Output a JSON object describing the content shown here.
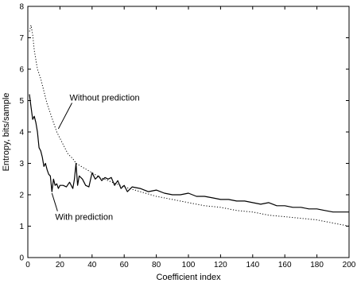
{
  "chart_data": {
    "type": "line",
    "title": "",
    "xlabel": "Coefficient index",
    "ylabel": "Entropy, bits/sample",
    "xlim": [
      0,
      200
    ],
    "ylim": [
      0,
      8
    ],
    "xticks": [
      0,
      20,
      40,
      60,
      80,
      100,
      120,
      140,
      160,
      180,
      200
    ],
    "yticks": [
      0,
      1,
      2,
      3,
      4,
      5,
      6,
      7,
      8
    ],
    "grid": false,
    "legend": "none",
    "series": [
      {
        "name": "Without prediction",
        "style": "dotted",
        "color": "#000000",
        "x": [
          1,
          2,
          3,
          4,
          5,
          6,
          8,
          10,
          12,
          14,
          16,
          18,
          20,
          22,
          25,
          28,
          30,
          35,
          40,
          45,
          50,
          55,
          60,
          70,
          80,
          90,
          100,
          110,
          120,
          130,
          140,
          150,
          160,
          170,
          180,
          190,
          195,
          200
        ],
        "y": [
          7.2,
          7.4,
          7.1,
          6.6,
          6.3,
          6.0,
          5.7,
          5.3,
          4.9,
          4.6,
          4.3,
          4.0,
          3.8,
          3.6,
          3.3,
          3.15,
          3.0,
          2.85,
          2.7,
          2.55,
          2.45,
          2.35,
          2.25,
          2.1,
          1.95,
          1.85,
          1.75,
          1.65,
          1.6,
          1.5,
          1.45,
          1.35,
          1.3,
          1.25,
          1.2,
          1.1,
          1.05,
          1.0
        ]
      },
      {
        "name": "With prediction",
        "style": "solid",
        "color": "#000000",
        "x": [
          1,
          2,
          3,
          4,
          5,
          6,
          7,
          8,
          9,
          10,
          11,
          12,
          13,
          14,
          15,
          16,
          17,
          18,
          19,
          20,
          22,
          24,
          26,
          28,
          29,
          30,
          31,
          32,
          34,
          36,
          38,
          40,
          42,
          44,
          46,
          48,
          50,
          52,
          54,
          56,
          58,
          60,
          62,
          65,
          70,
          75,
          80,
          85,
          90,
          95,
          100,
          105,
          110,
          115,
          120,
          125,
          130,
          135,
          140,
          145,
          150,
          155,
          160,
          165,
          170,
          175,
          180,
          185,
          190,
          195,
          200
        ],
        "y": [
          5.2,
          4.8,
          4.4,
          4.5,
          4.3,
          4.0,
          3.5,
          3.4,
          3.2,
          2.9,
          3.0,
          2.8,
          2.65,
          2.6,
          2.1,
          2.5,
          2.3,
          2.35,
          2.2,
          2.3,
          2.3,
          2.25,
          2.4,
          2.2,
          2.5,
          3.0,
          2.3,
          2.6,
          2.5,
          2.3,
          2.25,
          2.7,
          2.5,
          2.6,
          2.45,
          2.55,
          2.5,
          2.55,
          2.3,
          2.45,
          2.2,
          2.3,
          2.1,
          2.25,
          2.2,
          2.1,
          2.15,
          2.05,
          2.0,
          2.0,
          2.05,
          1.95,
          1.95,
          1.9,
          1.85,
          1.85,
          1.8,
          1.8,
          1.75,
          1.7,
          1.75,
          1.65,
          1.65,
          1.6,
          1.6,
          1.55,
          1.55,
          1.5,
          1.45,
          1.45,
          1.45
        ]
      }
    ],
    "annotations": [
      {
        "text": "Without prediction",
        "x": 26,
        "y": 5.0,
        "arrow_to": [
          19,
          4.1
        ]
      },
      {
        "text": "With prediction",
        "x": 17,
        "y": 1.2,
        "arrow_to": [
          15,
          2.05
        ]
      }
    ]
  }
}
